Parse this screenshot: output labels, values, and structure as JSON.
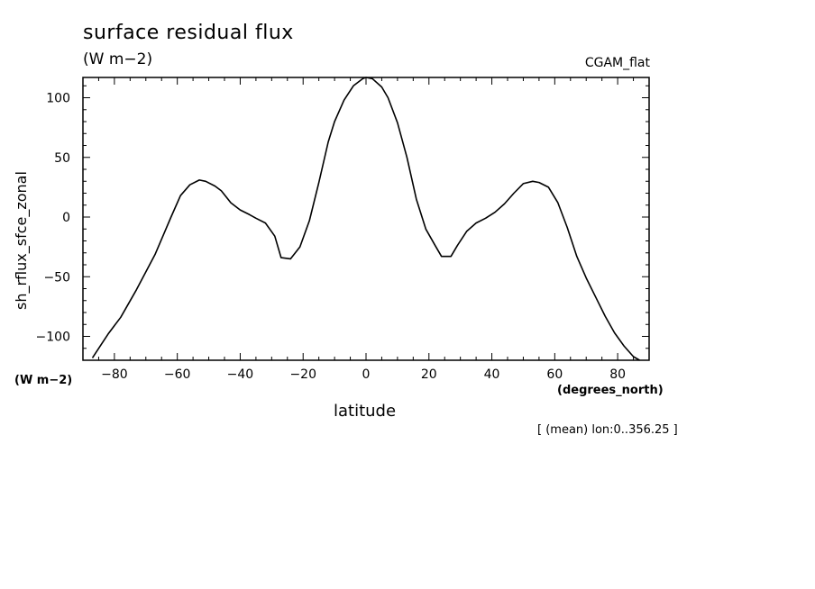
{
  "header": {
    "title": "surface residual flux",
    "units": "(W m−2)",
    "dataset": "CGAM_flat"
  },
  "footer": {
    "note": "[ (mean) lon:0..356.25 ]"
  },
  "chart_data": {
    "type": "line",
    "title": "surface residual flux",
    "xlabel": "latitude",
    "xunits": "(degrees_north)",
    "ylabel": "sh_rflux_sfce_zonal",
    "yunits": "(W m−2)",
    "xlim": [
      -90,
      90
    ],
    "ylim": [
      -120,
      117
    ],
    "xticks": [
      -80,
      -60,
      -40,
      -20,
      0,
      20,
      40,
      60,
      80
    ],
    "yticks": [
      -100,
      -50,
      0,
      50,
      100
    ],
    "xtick_labels": [
      "−80",
      "−60",
      "−40",
      "−20",
      "0",
      "20",
      "40",
      "60",
      "80"
    ],
    "ytick_labels": [
      "−100",
      "−50",
      "0",
      "50",
      "100"
    ],
    "grid": false,
    "series": [
      {
        "color": "#000000",
        "x": [
          -87,
          -82,
          -78,
          -73,
          -67,
          -62,
          -59,
          -56,
          -53,
          -51,
          -48,
          -46,
          -43,
          -40,
          -37,
          -35,
          -32,
          -29,
          -27,
          -24,
          -21,
          -18,
          -15,
          -12,
          -10,
          -7,
          -4,
          -1,
          0,
          2,
          5,
          7,
          10,
          13,
          16,
          19,
          22,
          24,
          27,
          29,
          32,
          35,
          38,
          41,
          44,
          47,
          50,
          53,
          55,
          58,
          61,
          64,
          67,
          70,
          73,
          76,
          79,
          82,
          85,
          87
        ],
        "y": [
          -118,
          -98,
          -84,
          -61,
          -31,
          0,
          18,
          27,
          31,
          30,
          26,
          22,
          12,
          6,
          2,
          -1,
          -5,
          -16,
          -34,
          -35,
          -25,
          -3,
          29,
          63,
          80,
          98,
          110,
          116,
          117,
          116,
          109,
          100,
          79,
          50,
          15,
          -10,
          -24,
          -33,
          -33,
          -24,
          -12,
          -5,
          -1,
          4,
          11,
          20,
          28,
          30,
          29,
          25,
          12,
          -9,
          -33,
          -51,
          -67,
          -83,
          -97,
          -108,
          -117,
          -120
        ]
      }
    ]
  }
}
